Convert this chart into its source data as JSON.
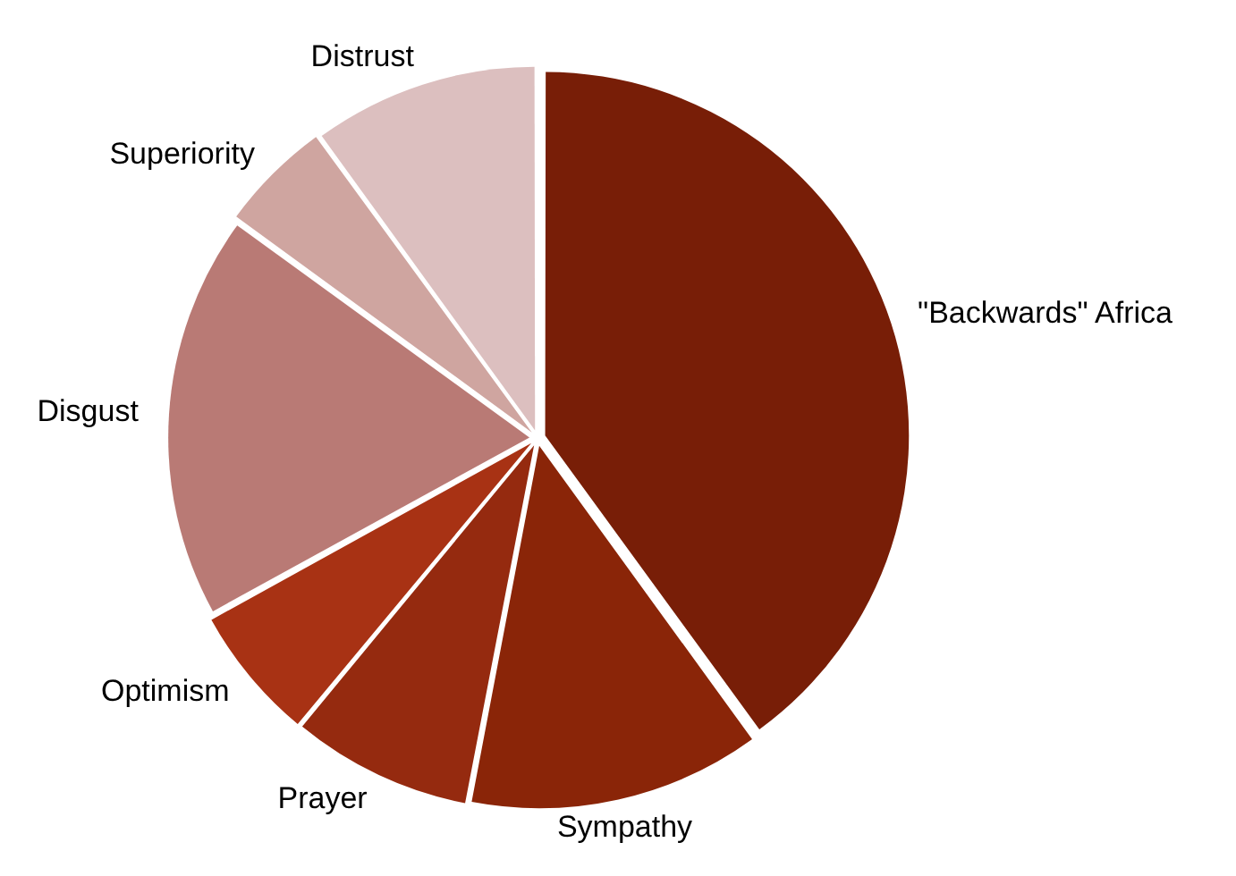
{
  "chart_data": {
    "type": "pie",
    "categories": [
      "\"Backwards\" Africa",
      "Sympathy",
      "Prayer",
      "Optimism",
      "Disgust",
      "Superiority",
      "Distrust"
    ],
    "values": [
      40,
      13,
      8,
      6,
      18,
      5,
      10
    ],
    "colors": [
      "#781e07",
      "#8a2508",
      "#952a0f",
      "#a83214",
      "#b97a75",
      "#cfa5a0",
      "#dcbfbf"
    ],
    "legend": false
  }
}
